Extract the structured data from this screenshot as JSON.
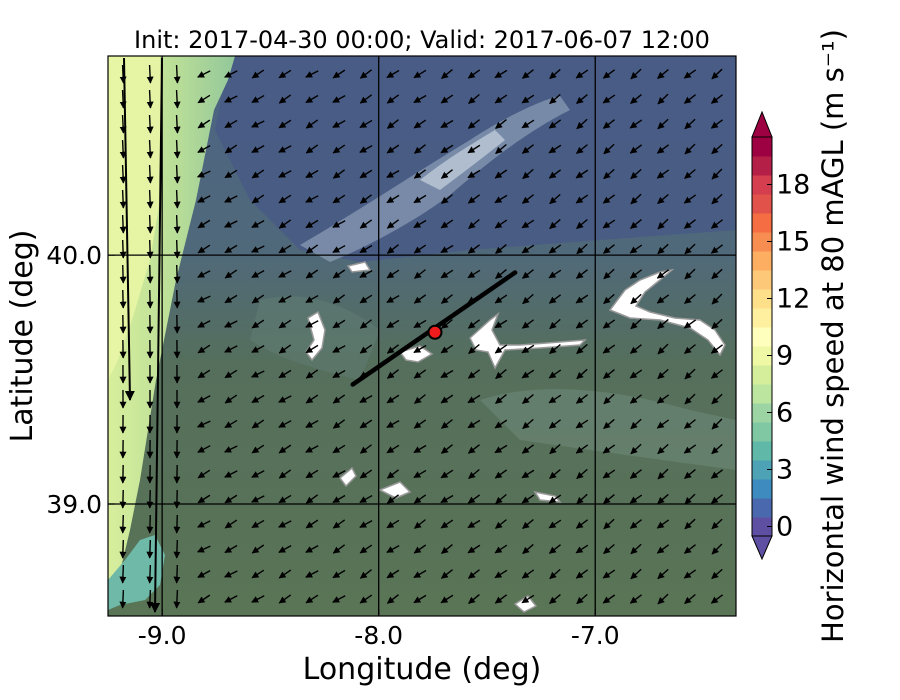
{
  "chart_data": {
    "type": "heatmap",
    "title": "Init: 2017-04-30 00:00; Valid: 2017-06-07 12:00",
    "xlabel": "Longitude (deg)",
    "ylabel": "Latitude (deg)",
    "xlim": [
      -9.25,
      -6.35
    ],
    "ylim": [
      38.55,
      40.8
    ],
    "xticks": [
      {
        "value": -9.0,
        "label": "-9.0"
      },
      {
        "value": -8.0,
        "label": "-8.0"
      },
      {
        "value": -7.0,
        "label": "-7.0"
      }
    ],
    "yticks": [
      {
        "value": 40.0,
        "label": "40.0"
      },
      {
        "value": 39.0,
        "label": "39.0"
      }
    ],
    "gridlines": {
      "lon": [
        -9.0,
        -8.0,
        -7.0
      ],
      "lat": [
        40.0,
        39.0
      ]
    },
    "colorbar": {
      "label": "Horizontal wind speed at 80 mAGL (m s⁻¹)",
      "min": 0,
      "max": 20,
      "step": 1,
      "extend": "both",
      "ticks": [
        {
          "value": 0,
          "label": "0"
        },
        {
          "value": 3,
          "label": "3"
        },
        {
          "value": 6,
          "label": "6"
        },
        {
          "value": 9,
          "label": "9"
        },
        {
          "value": 12,
          "label": "12"
        },
        {
          "value": 15,
          "label": "15"
        },
        {
          "value": 18,
          "label": "18"
        }
      ],
      "colors": [
        "#5e4fa2",
        "#4a68ae",
        "#3e8bbf",
        "#4ea2b5",
        "#5fb8a8",
        "#80c8a4",
        "#9dd4a4",
        "#bce5a0",
        "#d5ee9b",
        "#eef8a5",
        "#fefebd",
        "#fff0a0",
        "#fee08b",
        "#fdc978",
        "#fdae61",
        "#f88d52",
        "#f46d43",
        "#e0524a",
        "#d53e4f",
        "#b41f47",
        "#9e0142"
      ],
      "under_color": "#5e4fa2",
      "over_color": "#9e0142"
    },
    "transect": {
      "lon_start": -8.12,
      "lat_start": 39.48,
      "lon_end": -7.37,
      "lat_end": 39.93
    },
    "marker": {
      "lon": -7.74,
      "lat": 39.69,
      "color": "#ee1c1c"
    },
    "speed_field_description_values": {
      "coast_strip_speed": 8,
      "interior_speed": 3,
      "northern_low_band_speed": 1
    }
  }
}
